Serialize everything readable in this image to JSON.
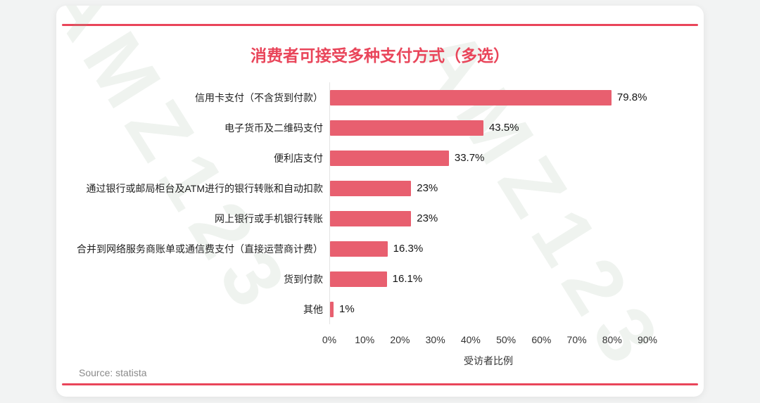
{
  "page": {
    "watermark": "AMZ123",
    "source": "Source: statista"
  },
  "colors": {
    "accent": "#e9455a",
    "bar": "#e85f6f",
    "watermark_tint": "#91af96"
  },
  "chart_data": {
    "type": "bar",
    "orientation": "horizontal",
    "title": "消费者可接受多种支付方式（多选）",
    "categories": [
      "信用卡支付（不含货到付款）",
      "电子货币及二维码支付",
      "便利店支付",
      "通过银行或邮局柜台及ATM进行的银行转账和自动扣款",
      "网上银行或手机银行转账",
      "合并到网络服务商账单或通信费支付（直接运营商计费）",
      "货到付款",
      "其他"
    ],
    "values": [
      79.8,
      43.5,
      33.7,
      23,
      23,
      16.3,
      16.1,
      1
    ],
    "value_labels": [
      "79.8%",
      "43.5%",
      "33.7%",
      "23%",
      "23%",
      "16.3%",
      "16.1%",
      "1%"
    ],
    "xlabel": "受访者比例",
    "x_ticks": [
      "0%",
      "10%",
      "20%",
      "30%",
      "40%",
      "50%",
      "60%",
      "70%",
      "80%",
      "90%"
    ],
    "xlim": [
      0,
      90
    ],
    "grid": false,
    "legend": false,
    "bar_color": "#e85f6f"
  }
}
